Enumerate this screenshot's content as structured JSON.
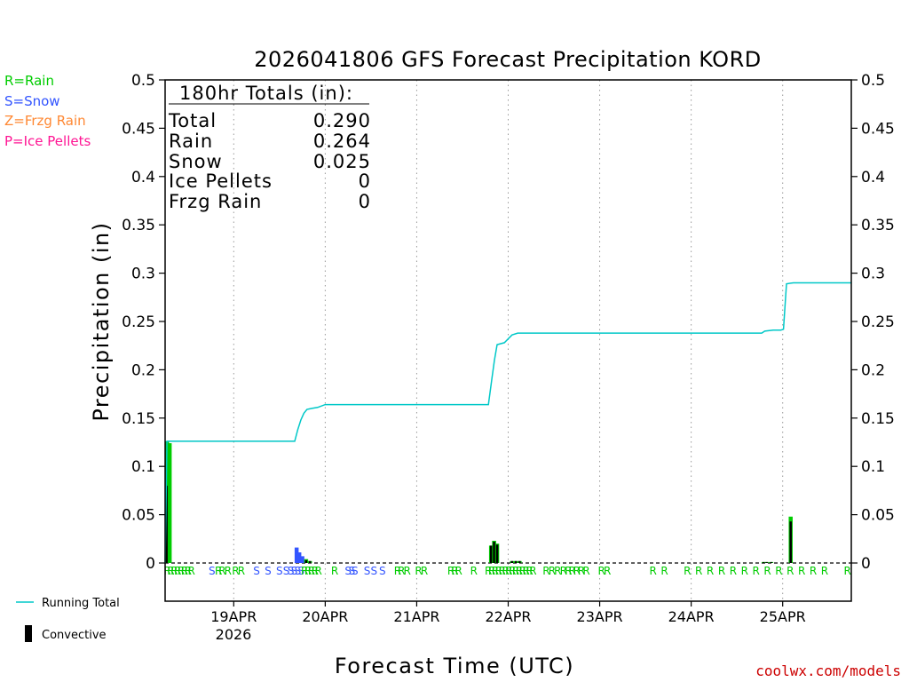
{
  "chart_data": {
    "type": "bar+line",
    "title": "2026041806 GFS Forecast Precipitation KORD",
    "xlabel": "Forecast Time (UTC)",
    "ylabel": "Precipitation (in)",
    "ylim": [
      0,
      0.5
    ],
    "yticks": [
      "0",
      "0.05",
      "0.1",
      "0.15",
      "0.2",
      "0.25",
      "0.3",
      "0.35",
      "0.4",
      "0.45",
      "0.5"
    ],
    "xlim_hours": [
      0,
      180
    ],
    "grid": "vertical dotted at each day",
    "day_ticks": [
      {
        "label": "19APR",
        "hour": 18
      },
      {
        "label": "20APR",
        "hour": 42
      },
      {
        "label": "21APR",
        "hour": 66
      },
      {
        "label": "22APR",
        "hour": 90
      },
      {
        "label": "23APR",
        "hour": 114
      },
      {
        "label": "24APR",
        "hour": 138
      },
      {
        "label": "25APR",
        "hour": 162
      }
    ],
    "year_label": "2026",
    "legend_types": [
      {
        "code": "R",
        "text": "R=Rain",
        "color": "#00cc00"
      },
      {
        "code": "S",
        "text": "S=Snow",
        "color": "#3355ff"
      },
      {
        "code": "Z",
        "text": "Z=Frzg Rain",
        "color": "#ff8833"
      },
      {
        "code": "P",
        "text": "P=Ice Pellets",
        "color": "#ff1493"
      }
    ],
    "legend_lines": [
      {
        "text": "Running Total",
        "color": "#00c8c8"
      },
      {
        "text": "Convective",
        "color": "#000000"
      }
    ],
    "totals": {
      "header": "180hr Totals (in):",
      "rows": [
        {
          "name": "Total",
          "value": "0.290"
        },
        {
          "name": "Rain",
          "value": "0.264"
        },
        {
          "name": "Snow",
          "value": "0.025"
        },
        {
          "name": "Ice Pellets",
          "value": "0"
        },
        {
          "name": "Frzg Rain",
          "value": "0"
        }
      ]
    },
    "bars": [
      {
        "hour": 0.5,
        "value": 0.126,
        "conv": 0.08,
        "type": "R"
      },
      {
        "hour": 1.2,
        "value": 0.124,
        "conv": 0.0,
        "type": "R"
      },
      {
        "hour": 34.5,
        "value": 0.016,
        "conv": 0.0,
        "type": "S"
      },
      {
        "hour": 35.2,
        "value": 0.011,
        "conv": 0.0,
        "type": "S"
      },
      {
        "hour": 36.0,
        "value": 0.007,
        "conv": 0.0,
        "type": "S"
      },
      {
        "hour": 37.0,
        "value": 0.004,
        "conv": 0.003,
        "type": "R"
      },
      {
        "hour": 38.0,
        "value": 0.002,
        "conv": 0.002,
        "type": "R"
      },
      {
        "hour": 85.5,
        "value": 0.018,
        "conv": 0.018,
        "type": "R"
      },
      {
        "hour": 86.3,
        "value": 0.023,
        "conv": 0.022,
        "type": "R"
      },
      {
        "hour": 87.1,
        "value": 0.02,
        "conv": 0.019,
        "type": "R"
      },
      {
        "hour": 91.0,
        "value": 0.002,
        "conv": 0.002,
        "type": "R"
      },
      {
        "hour": 92.0,
        "value": 0.002,
        "conv": 0.002,
        "type": "R"
      },
      {
        "hour": 93.0,
        "value": 0.002,
        "conv": 0.002,
        "type": "R"
      },
      {
        "hour": 157.0,
        "value": 0.001,
        "conv": 0.001,
        "type": "R"
      },
      {
        "hour": 157.8,
        "value": 0.001,
        "conv": 0.001,
        "type": "R"
      },
      {
        "hour": 159.0,
        "value": 0.001,
        "conv": 0.001,
        "type": "R"
      },
      {
        "hour": 164.1,
        "value": 0.048,
        "conv": 0.043,
        "type": "R"
      }
    ],
    "running_total": [
      [
        0,
        0
      ],
      [
        0.5,
        0.126
      ],
      [
        34,
        0.126
      ],
      [
        34.8,
        0.138
      ],
      [
        35.6,
        0.148
      ],
      [
        36.4,
        0.155
      ],
      [
        37.2,
        0.159
      ],
      [
        38.5,
        0.16
      ],
      [
        40,
        0.161
      ],
      [
        42,
        0.164
      ],
      [
        84.8,
        0.164
      ],
      [
        85.7,
        0.19
      ],
      [
        86.4,
        0.21
      ],
      [
        87.1,
        0.226
      ],
      [
        89,
        0.228
      ],
      [
        91,
        0.236
      ],
      [
        92.5,
        0.238
      ],
      [
        156.5,
        0.238
      ],
      [
        157.3,
        0.24
      ],
      [
        159.5,
        0.241
      ],
      [
        161.5,
        0.241
      ],
      [
        162.2,
        0.242
      ],
      [
        163.0,
        0.289
      ],
      [
        164.8,
        0.29
      ],
      [
        180,
        0.29
      ]
    ],
    "type_markers": [
      {
        "hour": 0.6,
        "code": "R"
      },
      {
        "hour": 1.5,
        "code": "R"
      },
      {
        "hour": 2.4,
        "code": "R"
      },
      {
        "hour": 3.3,
        "code": "R"
      },
      {
        "hour": 4.2,
        "code": "R"
      },
      {
        "hour": 5.1,
        "code": "R"
      },
      {
        "hour": 6.0,
        "code": "R"
      },
      {
        "hour": 6.9,
        "code": "R"
      },
      {
        "hour": 12.3,
        "code": "S"
      },
      {
        "hour": 14.0,
        "code": "R"
      },
      {
        "hour": 15.0,
        "code": "R"
      },
      {
        "hour": 16.5,
        "code": "R"
      },
      {
        "hour": 18.5,
        "code": "R"
      },
      {
        "hour": 20.0,
        "code": "R"
      },
      {
        "hour": 24.0,
        "code": "S"
      },
      {
        "hour": 27.0,
        "code": "S"
      },
      {
        "hour": 30.0,
        "code": "S"
      },
      {
        "hour": 31.8,
        "code": "S"
      },
      {
        "hour": 33.0,
        "code": "S"
      },
      {
        "hour": 33.9,
        "code": "S"
      },
      {
        "hour": 34.8,
        "code": "S"
      },
      {
        "hour": 35.7,
        "code": "S"
      },
      {
        "hour": 36.6,
        "code": "R"
      },
      {
        "hour": 37.5,
        "code": "R"
      },
      {
        "hour": 38.4,
        "code": "R"
      },
      {
        "hour": 39.3,
        "code": "R"
      },
      {
        "hour": 40.2,
        "code": "R"
      },
      {
        "hour": 44.5,
        "code": "R"
      },
      {
        "hour": 48.0,
        "code": "S"
      },
      {
        "hour": 49.0,
        "code": "S"
      },
      {
        "hour": 49.8,
        "code": "S"
      },
      {
        "hour": 53.0,
        "code": "S"
      },
      {
        "hour": 54.8,
        "code": "S"
      },
      {
        "hour": 57.0,
        "code": "S"
      },
      {
        "hour": 61.0,
        "code": "R"
      },
      {
        "hour": 62.0,
        "code": "R"
      },
      {
        "hour": 63.5,
        "code": "R"
      },
      {
        "hour": 66.5,
        "code": "R"
      },
      {
        "hour": 68.0,
        "code": "R"
      },
      {
        "hour": 75.0,
        "code": "R"
      },
      {
        "hour": 76.0,
        "code": "R"
      },
      {
        "hour": 77.0,
        "code": "R"
      },
      {
        "hour": 81.0,
        "code": "R"
      },
      {
        "hour": 84.8,
        "code": "R"
      },
      {
        "hour": 85.7,
        "code": "R"
      },
      {
        "hour": 86.6,
        "code": "R"
      },
      {
        "hour": 87.5,
        "code": "R"
      },
      {
        "hour": 88.4,
        "code": "R"
      },
      {
        "hour": 89.3,
        "code": "R"
      },
      {
        "hour": 90.2,
        "code": "R"
      },
      {
        "hour": 91.1,
        "code": "R"
      },
      {
        "hour": 92.0,
        "code": "R"
      },
      {
        "hour": 92.9,
        "code": "R"
      },
      {
        "hour": 93.8,
        "code": "R"
      },
      {
        "hour": 94.7,
        "code": "R"
      },
      {
        "hour": 95.6,
        "code": "R"
      },
      {
        "hour": 96.5,
        "code": "R"
      },
      {
        "hour": 100.0,
        "code": "R"
      },
      {
        "hour": 101.5,
        "code": "R"
      },
      {
        "hour": 103.0,
        "code": "R"
      },
      {
        "hour": 104.5,
        "code": "R"
      },
      {
        "hour": 105.8,
        "code": "R"
      },
      {
        "hour": 106.8,
        "code": "R"
      },
      {
        "hour": 108.0,
        "code": "R"
      },
      {
        "hour": 109.2,
        "code": "R"
      },
      {
        "hour": 110.5,
        "code": "R"
      },
      {
        "hour": 114.5,
        "code": "R"
      },
      {
        "hour": 116.0,
        "code": "R"
      },
      {
        "hour": 128.0,
        "code": "R"
      },
      {
        "hour": 131.0,
        "code": "R"
      },
      {
        "hour": 137.0,
        "code": "R"
      },
      {
        "hour": 140.0,
        "code": "R"
      },
      {
        "hour": 143.0,
        "code": "R"
      },
      {
        "hour": 146.0,
        "code": "R"
      },
      {
        "hour": 149.0,
        "code": "R"
      },
      {
        "hour": 152.0,
        "code": "R"
      },
      {
        "hour": 155.0,
        "code": "R"
      },
      {
        "hour": 158.0,
        "code": "R"
      },
      {
        "hour": 161.0,
        "code": "R"
      },
      {
        "hour": 164.0,
        "code": "R"
      },
      {
        "hour": 167.0,
        "code": "R"
      },
      {
        "hour": 170.0,
        "code": "R"
      },
      {
        "hour": 173.0,
        "code": "R"
      },
      {
        "hour": 179.0,
        "code": "R"
      }
    ]
  },
  "credit": "coolwx.com/models",
  "colors": {
    "rain": "#00cc00",
    "snow": "#3355ff",
    "frzg": "#ff8833",
    "ice": "#ff1493",
    "running_total": "#00c8c8",
    "convective": "#000000",
    "grid": "#999999"
  }
}
